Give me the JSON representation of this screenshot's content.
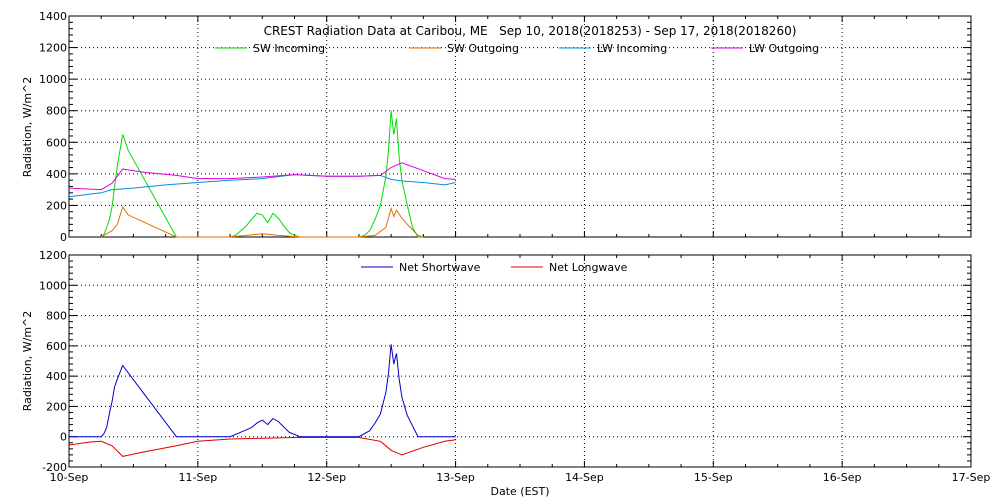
{
  "chart_data": [
    {
      "type": "line",
      "title": "CREST Radiation Data at Caribou, ME   Sep 10, 2018(2018253) - Sep 17, 2018(2018260)",
      "xlabel": "",
      "ylabel": "Radiation, W/m^2",
      "xlim": [
        "2018-09-10T00:00",
        "2018-09-17T00:00"
      ],
      "ylim": [
        0,
        1400
      ],
      "yticks": [
        0,
        200,
        400,
        600,
        800,
        1000,
        1200,
        1400
      ],
      "grid": true,
      "legend_position": "top-center",
      "series": [
        {
          "name": "SW Incoming",
          "color": "#00dd00",
          "x": [
            "2018-09-10T06:00",
            "2018-09-10T06:30",
            "2018-09-10T07:00",
            "2018-09-10T07:30",
            "2018-09-10T08:00",
            "2018-09-10T08:30",
            "2018-09-10T09:00",
            "2018-09-10T10:00",
            "2018-09-10T11:00",
            "2018-09-10T20:00",
            "2018-09-10T21:00",
            "2018-09-11T06:00",
            "2018-09-11T07:00",
            "2018-09-11T08:00",
            "2018-09-11T09:00",
            "2018-09-11T10:00",
            "2018-09-11T11:00",
            "2018-09-11T12:00",
            "2018-09-11T13:00",
            "2018-09-11T14:00",
            "2018-09-11T15:00",
            "2018-09-11T16:00",
            "2018-09-11T17:00",
            "2018-09-11T18:00",
            "2018-09-11T19:00",
            "2018-09-12T06:00",
            "2018-09-12T07:00",
            "2018-09-12T08:00",
            "2018-09-12T09:00",
            "2018-09-12T10:00",
            "2018-09-12T11:00",
            "2018-09-12T11:30",
            "2018-09-12T12:00",
            "2018-09-12T12:30",
            "2018-09-12T13:00",
            "2018-09-12T13:30",
            "2018-09-12T14:00",
            "2018-09-12T15:00",
            "2018-09-12T16:00",
            "2018-09-12T17:00",
            "2018-09-12T18:00"
          ],
          "values": [
            0,
            15,
            60,
            110,
            190,
            320,
            450,
            650,
            550,
            0,
            0,
            0,
            10,
            40,
            70,
            110,
            150,
            140,
            90,
            150,
            120,
            70,
            30,
            10,
            0,
            0,
            10,
            40,
            110,
            200,
            380,
            550,
            800,
            650,
            750,
            500,
            360,
            200,
            60,
            0,
            0
          ]
        },
        {
          "name": "SW Outgoing",
          "color": "#e07000",
          "x": [
            "2018-09-10T06:00",
            "2018-09-10T08:00",
            "2018-09-10T09:00",
            "2018-09-10T10:00",
            "2018-09-10T11:00",
            "2018-09-10T20:00",
            "2018-09-10T21:00",
            "2018-09-11T06:00",
            "2018-09-11T09:00",
            "2018-09-11T12:00",
            "2018-09-11T15:00",
            "2018-09-11T19:00",
            "2018-09-12T06:00",
            "2018-09-12T09:00",
            "2018-09-12T11:00",
            "2018-09-12T12:00",
            "2018-09-12T12:30",
            "2018-09-12T13:00",
            "2018-09-12T14:00",
            "2018-09-12T15:00",
            "2018-09-12T17:00",
            "2018-09-12T18:00"
          ],
          "values": [
            0,
            40,
            80,
            190,
            140,
            0,
            0,
            0,
            10,
            20,
            10,
            0,
            0,
            10,
            60,
            180,
            130,
            170,
            120,
            80,
            10,
            0
          ]
        },
        {
          "name": "LW Incoming",
          "color": "#0090e0",
          "x": [
            "2018-09-10T00:00",
            "2018-09-10T06:00",
            "2018-09-10T08:00",
            "2018-09-10T12:00",
            "2018-09-10T18:00",
            "2018-09-11T00:00",
            "2018-09-11T06:00",
            "2018-09-11T12:00",
            "2018-09-11T18:00",
            "2018-09-12T00:00",
            "2018-09-12T06:00",
            "2018-09-12T10:00",
            "2018-09-12T12:00",
            "2018-09-12T14:00",
            "2018-09-12T18:00",
            "2018-09-12T22:00",
            "2018-09-13T00:00"
          ],
          "values": [
            255,
            280,
            300,
            310,
            330,
            345,
            360,
            370,
            395,
            385,
            385,
            390,
            365,
            355,
            345,
            330,
            345
          ]
        },
        {
          "name": "LW Outgoing",
          "color": "#dd00dd",
          "x": [
            "2018-09-10T00:00",
            "2018-09-10T06:00",
            "2018-09-10T08:00",
            "2018-09-10T10:00",
            "2018-09-10T14:00",
            "2018-09-10T20:00",
            "2018-09-11T00:00",
            "2018-09-11T06:00",
            "2018-09-11T12:00",
            "2018-09-11T18:00",
            "2018-09-12T00:00",
            "2018-09-12T06:00",
            "2018-09-12T10:00",
            "2018-09-12T12:00",
            "2018-09-12T14:00",
            "2018-09-12T18:00",
            "2018-09-12T22:00",
            "2018-09-13T00:00"
          ],
          "values": [
            310,
            300,
            340,
            430,
            410,
            390,
            370,
            370,
            380,
            395,
            385,
            385,
            390,
            440,
            470,
            420,
            370,
            365
          ]
        }
      ]
    },
    {
      "type": "line",
      "title": "",
      "xlabel": "Date (EST)",
      "ylabel": "Radiation, W/m^2",
      "xlim": [
        "2018-09-10T00:00",
        "2018-09-17T00:00"
      ],
      "ylim": [
        -200,
        1200
      ],
      "yticks": [
        -200,
        0,
        200,
        400,
        600,
        800,
        1000,
        1200
      ],
      "xticks": [
        "10-Sep",
        "11-Sep",
        "12-Sep",
        "13-Sep",
        "14-Sep",
        "15-Sep",
        "16-Sep",
        "17-Sep"
      ],
      "grid": true,
      "legend_position": "top-center",
      "series": [
        {
          "name": "Net Shortwave",
          "color": "#0000cc",
          "x": [
            "2018-09-10T00:00",
            "2018-09-10T06:00",
            "2018-09-10T06:30",
            "2018-09-10T07:00",
            "2018-09-10T07:30",
            "2018-09-10T08:00",
            "2018-09-10T08:30",
            "2018-09-10T09:00",
            "2018-09-10T10:00",
            "2018-09-10T20:00",
            "2018-09-11T06:00",
            "2018-09-11T08:00",
            "2018-09-11T10:00",
            "2018-09-11T11:00",
            "2018-09-11T12:00",
            "2018-09-11T13:00",
            "2018-09-11T14:00",
            "2018-09-11T15:00",
            "2018-09-11T17:00",
            "2018-09-11T19:00",
            "2018-09-12T06:00",
            "2018-09-12T08:00",
            "2018-09-12T09:00",
            "2018-09-12T10:00",
            "2018-09-12T11:00",
            "2018-09-12T11:30",
            "2018-09-12T12:00",
            "2018-09-12T12:30",
            "2018-09-12T13:00",
            "2018-09-12T13:30",
            "2018-09-12T14:00",
            "2018-09-12T15:00",
            "2018-09-12T17:00",
            "2018-09-12T20:00",
            "2018-09-13T00:00"
          ],
          "values": [
            0,
            0,
            20,
            60,
            150,
            230,
            330,
            380,
            470,
            0,
            0,
            30,
            60,
            90,
            110,
            80,
            120,
            100,
            30,
            0,
            0,
            40,
            90,
            150,
            290,
            420,
            610,
            480,
            550,
            380,
            260,
            140,
            0,
            0,
            0
          ]
        },
        {
          "name": "Net Longwave",
          "color": "#dd0000",
          "x": [
            "2018-09-10T00:00",
            "2018-09-10T04:00",
            "2018-09-10T06:00",
            "2018-09-10T08:00",
            "2018-09-10T10:00",
            "2018-09-10T14:00",
            "2018-09-10T20:00",
            "2018-09-11T00:00",
            "2018-09-11T06:00",
            "2018-09-11T12:00",
            "2018-09-11T18:00",
            "2018-09-12T00:00",
            "2018-09-12T06:00",
            "2018-09-12T10:00",
            "2018-09-12T12:00",
            "2018-09-12T14:00",
            "2018-09-12T18:00",
            "2018-09-12T22:00",
            "2018-09-13T00:00"
          ],
          "values": [
            -55,
            -35,
            -30,
            -60,
            -130,
            -100,
            -60,
            -30,
            -15,
            -10,
            -5,
            -5,
            -5,
            -30,
            -90,
            -120,
            -70,
            -30,
            -20
          ]
        }
      ]
    }
  ]
}
